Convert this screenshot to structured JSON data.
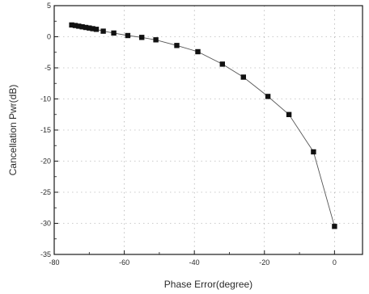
{
  "chart_data": {
    "type": "line",
    "title": "",
    "xlabel": "Phase Error(degree)",
    "ylabel": "Cancellation Pwr(dB)",
    "xlim": [
      -80,
      8
    ],
    "ylim": [
      -35,
      5
    ],
    "x_ticks": [
      -80,
      -60,
      -40,
      -20,
      0
    ],
    "y_ticks": [
      5,
      0,
      -5,
      -10,
      -15,
      -20,
      -25,
      -30,
      -35
    ],
    "grid": true,
    "legend": "none",
    "marker": "square",
    "color": "#111111",
    "series": [
      {
        "x": [
          -75,
          -74,
          -73,
          -72,
          -71,
          -70,
          -69,
          -68,
          -66,
          -63,
          -59,
          -55,
          -51,
          -45,
          -39,
          -32,
          -26,
          -19,
          -13,
          -6,
          0
        ],
        "y": [
          1.9,
          1.8,
          1.7,
          1.6,
          1.5,
          1.4,
          1.3,
          1.2,
          0.9,
          0.6,
          0.2,
          -0.1,
          -0.5,
          -1.4,
          -2.4,
          -4.4,
          -6.5,
          -9.6,
          -12.5,
          -18.5,
          -30.5
        ]
      }
    ]
  }
}
